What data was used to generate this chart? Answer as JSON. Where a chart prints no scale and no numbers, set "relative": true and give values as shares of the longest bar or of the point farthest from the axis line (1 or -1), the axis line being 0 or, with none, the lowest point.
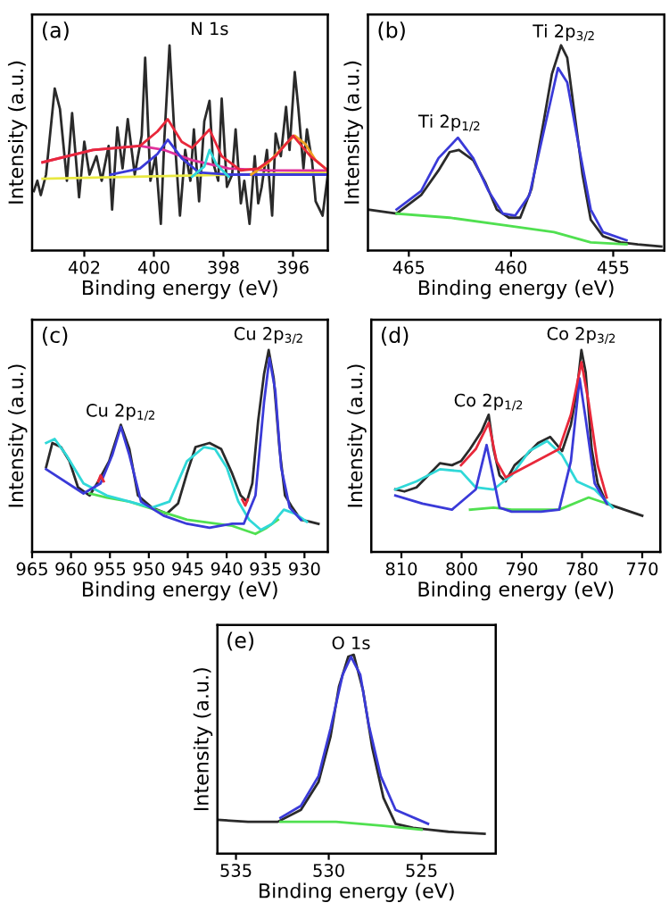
{
  "chart_data": [
    {
      "type": "line",
      "title": "(a)",
      "xlabel": "Binding energy (eV)",
      "ylabel": "Intensity (a.u.)",
      "annotations": [
        "N 1s"
      ],
      "relative": true,
      "tick_labels": "x",
      "xlim": [
        403.5,
        395
      ],
      "xticks": [
        402,
        400,
        398,
        396
      ],
      "series": [
        {
          "color": "#2a2a2a",
          "x": [
            403.45,
            403.35,
            403.25,
            403.1,
            402.85,
            402.7,
            402.5,
            402.35,
            402.15,
            402.0,
            401.85,
            401.65,
            401.5,
            401.3,
            401.2,
            401.05,
            400.9,
            400.75,
            400.55,
            400.35,
            400.25,
            400.1,
            399.95,
            399.8,
            399.7,
            399.55,
            399.4,
            399.25,
            399.1,
            398.95,
            398.85,
            398.7,
            398.55,
            398.4,
            398.3,
            398.15,
            398.05,
            397.9,
            397.75,
            397.65,
            397.5,
            397.4,
            397.25,
            397.1,
            397.0,
            396.9,
            396.75,
            396.6,
            396.5,
            396.35,
            396.2,
            396.1,
            395.95,
            395.85,
            395.7,
            395.6,
            395.45,
            395.35,
            395.15,
            395.0
          ],
          "values": [
            0.29,
            0.34,
            0.27,
            0.37,
            0.79,
            0.69,
            0.34,
            0.67,
            0.26,
            0.53,
            0.37,
            0.46,
            0.34,
            0.51,
            0.2,
            0.6,
            0.4,
            0.64,
            0.37,
            0.56,
            0.94,
            0.34,
            0.46,
            0.13,
            0.54,
            1.0,
            0.54,
            0.17,
            0.49,
            0.34,
            0.59,
            0.24,
            0.63,
            0.73,
            0.43,
            0.34,
            0.74,
            0.31,
            0.37,
            0.59,
            0.23,
            0.34,
            0.13,
            0.46,
            0.23,
            0.31,
            0.49,
            0.17,
            0.57,
            0.46,
            0.7,
            0.49,
            0.87,
            0.7,
            0.4,
            0.59,
            0.43,
            0.24,
            0.17,
            0.37
          ]
        },
        {
          "color": "#e8e840",
          "x": [
            403.2,
            395.0
          ],
          "values": [
            0.35,
            0.38
          ]
        },
        {
          "color": "#e0309a",
          "x": [
            403.2,
            401.75,
            400.4,
            399.7,
            398.9,
            397.85,
            396.7,
            395.0
          ],
          "values": [
            0.43,
            0.49,
            0.51,
            0.49,
            0.44,
            0.4,
            0.39,
            0.39
          ]
        },
        {
          "color": "#3a3ad8",
          "x": [
            401.25,
            400.4,
            399.9,
            399.6,
            399.2,
            398.7,
            397.85,
            395.0
          ],
          "values": [
            0.37,
            0.4,
            0.47,
            0.54,
            0.45,
            0.38,
            0.37,
            0.37
          ]
        },
        {
          "color": "#30d8d8",
          "x": [
            398.9,
            398.55,
            398.4,
            398.2,
            397.85
          ],
          "values": [
            0.36,
            0.41,
            0.49,
            0.42,
            0.36
          ]
        },
        {
          "color": "#f0a020",
          "x": [
            397.2,
            396.7,
            396.2,
            395.95,
            395.65,
            395.35,
            395.0
          ],
          "values": [
            0.37,
            0.43,
            0.52,
            0.56,
            0.52,
            0.44,
            0.39
          ]
        },
        {
          "color": "#e8283a",
          "x": [
            403.2,
            401.75,
            400.4,
            399.9,
            399.6,
            399.2,
            398.9,
            398.4,
            398.05,
            397.5,
            397.0,
            396.5,
            396.0,
            395.5,
            395.0
          ],
          "values": [
            0.43,
            0.49,
            0.51,
            0.58,
            0.64,
            0.53,
            0.5,
            0.59,
            0.46,
            0.39,
            0.4,
            0.46,
            0.56,
            0.46,
            0.39
          ]
        }
      ]
    },
    {
      "type": "line",
      "title": "(b)",
      "xlabel": "Binding energy (eV)",
      "ylabel": "Intensity (a.u.)",
      "relative": true,
      "tick_labels": "x",
      "xlim": [
        467,
        452.5
      ],
      "xticks": [
        465,
        460,
        455
      ],
      "annotations": [
        {
          "text": "Ti 2p$_{1/2}$",
          "x": 463.0,
          "y": 0.58
        },
        {
          "text": "Ti 2p$_{3/2}$",
          "x": 457.4,
          "y": 1.02
        }
      ],
      "series": [
        {
          "color": "#2a2a2a",
          "x": [
            467.0,
            465.6,
            464.4,
            463.55,
            463.0,
            462.55,
            461.85,
            461.25,
            460.7,
            460.1,
            459.55,
            459.0,
            458.4,
            458.0,
            457.55,
            457.25,
            456.95,
            456.5,
            456.1,
            455.5,
            454.65,
            453.8,
            452.65
          ],
          "values": [
            0.2,
            0.18,
            0.27,
            0.39,
            0.48,
            0.49,
            0.44,
            0.33,
            0.2,
            0.16,
            0.16,
            0.3,
            0.63,
            0.86,
            1.0,
            0.94,
            0.71,
            0.37,
            0.15,
            0.07,
            0.04,
            0.03,
            0.02
          ]
        },
        {
          "color": "#3a3ad8",
          "x": [
            465.6,
            464.4,
            463.55,
            462.6,
            461.85,
            461.1,
            460.4,
            459.8,
            459.1,
            458.4,
            457.7,
            457.25,
            456.65,
            456.1,
            455.5,
            454.35
          ],
          "values": [
            0.2,
            0.29,
            0.45,
            0.55,
            0.45,
            0.29,
            0.18,
            0.17,
            0.27,
            0.58,
            0.89,
            0.82,
            0.49,
            0.2,
            0.09,
            0.05
          ]
        },
        {
          "color": "#50e050",
          "x": [
            465.6,
            463.0,
            460.1,
            457.9,
            456.1,
            454.35
          ],
          "values": [
            0.18,
            0.16,
            0.12,
            0.09,
            0.04,
            0.03
          ]
        }
      ]
    },
    {
      "type": "line",
      "title": "(c)",
      "xlabel": "Binding energy (eV)",
      "ylabel": "Intensity (a.u.)",
      "relative": true,
      "tick_labels": "x",
      "xlim": [
        965,
        927
      ],
      "xticks": [
        965,
        960,
        955,
        950,
        945,
        940,
        935,
        930
      ],
      "annotations": [
        {
          "text": "Cu 2p$_{1/2}$",
          "x": 953.6,
          "y": 0.65
        },
        {
          "text": "Cu 2p$_{3/2}$",
          "x": 934.6,
          "y": 1.03
        }
      ],
      "series": [
        {
          "color": "#2a2a2a",
          "x": [
            963.2,
            962.4,
            961.3,
            960.2,
            959.1,
            957.6,
            956.5,
            955.1,
            953.6,
            952.5,
            951.4,
            949.6,
            947.7,
            946.25,
            945.1,
            944.0,
            942.2,
            940.7,
            939.3,
            938.2,
            937.4,
            936.7,
            935.95,
            935.2,
            934.6,
            933.95,
            933.2,
            932.5,
            931.55,
            930.45,
            929.3,
            928.2
          ],
          "values": [
            0.42,
            0.54,
            0.52,
            0.45,
            0.32,
            0.28,
            0.35,
            0.45,
            0.63,
            0.51,
            0.28,
            0.22,
            0.19,
            0.24,
            0.39,
            0.52,
            0.54,
            0.51,
            0.39,
            0.28,
            0.25,
            0.34,
            0.65,
            0.88,
            1.0,
            0.86,
            0.51,
            0.28,
            0.22,
            0.16,
            0.15,
            0.14
          ]
        },
        {
          "color": "#50e050",
          "x": [
            957.6,
            955.4,
            952.5,
            945.1,
            939.3,
            937.8,
            936.3,
            934.85,
            933.4
          ],
          "values": [
            0.29,
            0.27,
            0.25,
            0.16,
            0.13,
            0.11,
            0.09,
            0.12,
            0.16
          ]
        },
        {
          "color": "#30d8d8",
          "x": [
            963.2,
            962.1,
            960.6,
            958.4,
            955.4,
            952.5,
            949.6,
            947.35,
            945.1,
            942.9,
            941.5,
            940.0,
            938.5,
            937.1,
            935.6,
            934.15,
            932.65,
            931.2,
            929.7
          ],
          "values": [
            0.54,
            0.56,
            0.48,
            0.34,
            0.28,
            0.25,
            0.22,
            0.25,
            0.45,
            0.52,
            0.51,
            0.42,
            0.25,
            0.16,
            0.11,
            0.14,
            0.21,
            0.19,
            0.15
          ]
        },
        {
          "color": "#3a3ad8",
          "x": [
            963.2,
            958.4,
            956.2,
            954.7,
            953.6,
            952.5,
            951.0,
            948.1,
            945.1,
            942.2,
            939.3,
            937.8,
            936.3,
            935.2,
            934.5,
            933.75,
            933.0,
            931.9,
            930.45
          ],
          "values": [
            0.41,
            0.29,
            0.34,
            0.48,
            0.62,
            0.48,
            0.25,
            0.18,
            0.14,
            0.12,
            0.14,
            0.14,
            0.28,
            0.74,
            0.96,
            0.8,
            0.42,
            0.22,
            0.16
          ]
        },
        {
          "color": "#e8283a",
          "x": [
            956.5,
            956.2,
            955.8,
            947.0,
            938.0,
            937.6,
            937.3
          ],
          "values": [
            0.35,
            0.38,
            0.35,
            null,
            0.26,
            0.23,
            0.26
          ]
        }
      ]
    },
    {
      "type": "line",
      "title": "(d)",
      "xlabel": "Binding energy (eV)",
      "ylabel": "Intensity (a.u.)",
      "relative": true,
      "tick_labels": "x",
      "xlim": [
        815,
        767
      ],
      "xticks": [
        810,
        800,
        790,
        780,
        770
      ],
      "annotations": [
        {
          "text": "Co 2p$_{1/2}$",
          "x": 795.5,
          "y": 0.7
        },
        {
          "text": "Co 2p$_{3/2}$",
          "x": 780.1,
          "y": 1.03
        }
      ],
      "series": [
        {
          "color": "#2a2a2a",
          "x": [
            811.0,
            809.5,
            807.5,
            805.55,
            803.6,
            801.6,
            800.1,
            798.6,
            796.65,
            795.5,
            794.7,
            793.7,
            792.7,
            791.2,
            789.25,
            787.3,
            785.3,
            783.3,
            781.85,
            780.85,
            780.1,
            779.4,
            778.4,
            777.4,
            775.9,
            773.95,
            772.0,
            770.0
          ],
          "values": [
            0.31,
            0.3,
            0.32,
            0.38,
            0.44,
            0.43,
            0.45,
            0.51,
            0.6,
            0.68,
            0.51,
            0.38,
            0.35,
            0.43,
            0.48,
            0.54,
            0.57,
            0.5,
            0.63,
            0.8,
            1.0,
            0.89,
            0.51,
            0.34,
            0.24,
            0.22,
            0.2,
            0.18
          ]
        },
        {
          "color": "#50e050",
          "x": [
            798.6,
            794.7,
            791.7,
            783.8,
            778.9,
            775.9
          ],
          "values": [
            0.21,
            0.22,
            0.21,
            0.21,
            0.27,
            0.24
          ]
        },
        {
          "color": "#30d8d8",
          "x": [
            811.0,
            807.5,
            803.6,
            800.1,
            797.65,
            794.7,
            791.7,
            788.75,
            785.8,
            783.3,
            780.85,
            777.9,
            774.9
          ],
          "values": [
            0.31,
            0.35,
            0.41,
            0.4,
            0.32,
            0.31,
            0.38,
            0.5,
            0.55,
            0.48,
            0.35,
            0.31,
            0.22
          ]
        },
        {
          "color": "#3a3ad8",
          "x": [
            811.0,
            806.5,
            801.6,
            797.65,
            795.85,
            795.15,
            793.7,
            791.7,
            786.8,
            783.8,
            781.85,
            780.4,
            779.4,
            777.9,
            775.9
          ],
          "values": [
            0.28,
            0.24,
            0.21,
            0.31,
            0.53,
            0.43,
            0.22,
            0.2,
            0.2,
            0.21,
            0.45,
            0.86,
            0.66,
            0.34,
            0.24
          ]
        },
        {
          "color": "#e8283a",
          "x": [
            800.1,
            797.65,
            795.5,
            794.2,
            792.7,
            783.8,
            781.85,
            780.1,
            778.9,
            777.4,
            775.9
          ],
          "values": [
            0.43,
            0.51,
            0.64,
            0.45,
            0.37,
            0.51,
            0.68,
            0.94,
            0.74,
            0.43,
            0.27
          ]
        }
      ]
    },
    {
      "type": "line",
      "title": "(e)",
      "xlabel": "Binding energy (eV)",
      "ylabel": "Intensity (a.u.)",
      "relative": true,
      "tick_labels": "x",
      "xlim": [
        536,
        521
      ],
      "xticks": [
        535,
        530,
        525
      ],
      "annotations": [
        {
          "text": "O 1s",
          "x": 528.8,
          "y": 1.01
        }
      ],
      "series": [
        {
          "color": "#2a2a2a",
          "x": [
            536.0,
            534.35,
            532.75,
            531.5,
            530.55,
            529.9,
            529.45,
            528.95,
            528.65,
            528.15,
            527.65,
            527.05,
            526.4,
            525.45,
            524.5,
            523.55,
            521.6
          ],
          "values": [
            0.17,
            0.16,
            0.16,
            0.22,
            0.36,
            0.59,
            0.84,
            0.99,
            1.0,
            0.82,
            0.53,
            0.28,
            0.15,
            0.13,
            0.12,
            0.11,
            0.1
          ]
        },
        {
          "color": "#3a3ad8",
          "x": [
            532.6,
            531.5,
            530.55,
            529.9,
            529.25,
            528.8,
            528.3,
            527.85,
            527.2,
            526.4,
            524.65
          ],
          "values": [
            0.18,
            0.24,
            0.39,
            0.63,
            0.9,
            0.99,
            0.9,
            0.65,
            0.39,
            0.22,
            0.15
          ]
        },
        {
          "color": "#50e050",
          "x": [
            532.6,
            529.6,
            527.05,
            525.0
          ],
          "values": [
            0.16,
            0.16,
            0.14,
            0.12
          ]
        }
      ]
    }
  ]
}
